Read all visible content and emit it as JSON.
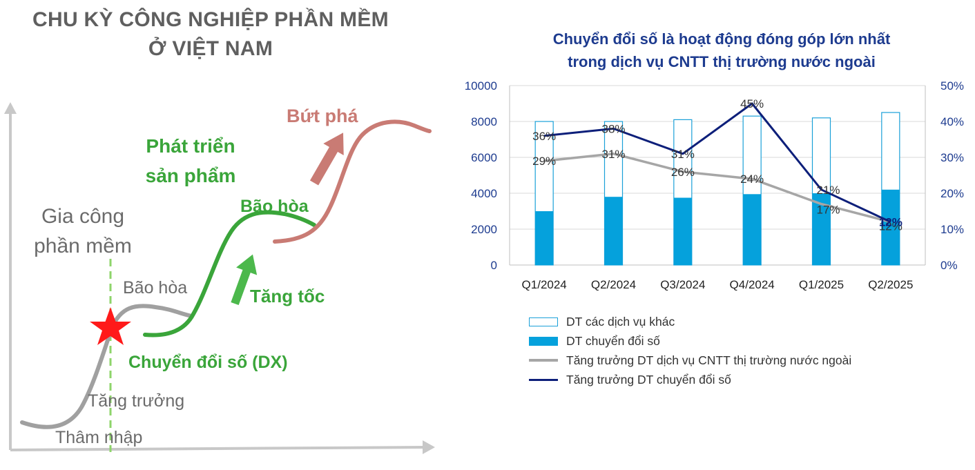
{
  "left_panel": {
    "title_line1": "CHU KỲ CÔNG NGHIỆP PHẦN MỀM",
    "title_line2": "Ở VIỆT NAM",
    "labels": {
      "gia_cong_1": "Gia công",
      "gia_cong_2": "phần mềm",
      "bao_hoa_gray": "Bão hòa",
      "tang_truong": "Tăng trưởng",
      "tham_nhap": "Thâm nhập",
      "phat_trien_1": "Phát triển",
      "phat_trien_2": "sản phẩm",
      "bao_hoa_green": "Bão hòa",
      "tang_toc": "Tăng tốc",
      "chuyen_doi_so": "Chuyển đổi số (DX)",
      "but_pha": "Bứt phá"
    },
    "colors": {
      "gray": "#a0a0a0",
      "green": "#3aa53a",
      "rose": "#c97b74",
      "star": "#ff1a1a",
      "text_gray": "#6b6b6b"
    }
  },
  "chart_data": {
    "type": "bar",
    "title": "Chuyển đổi số là hoạt động đóng góp lớn nhất trong dịch vụ CNTT thị trường nước ngoài",
    "title_line1": "Chuyển đổi số là hoạt động đóng góp lớn nhất",
    "title_line2": "trong dịch vụ CNTT thị trường nước ngoài",
    "categories": [
      "Q1/2024",
      "Q2/2024",
      "Q3/2024",
      "Q4/2024",
      "Q1/2025",
      "Q2/2025"
    ],
    "y_left": {
      "min": 0,
      "max": 10000,
      "ticks": [
        "0",
        "2000",
        "4000",
        "6000",
        "8000",
        "10000"
      ]
    },
    "y_right": {
      "min": 0,
      "max": 50,
      "ticks": [
        "0%",
        "10%",
        "20%",
        "30%",
        "40%",
        "50%"
      ]
    },
    "series": [
      {
        "name": "DT các dịch vụ khác",
        "kind": "bar-total-outline",
        "axis": "left",
        "values": [
          8000,
          8000,
          8100,
          8300,
          8200,
          8500
        ]
      },
      {
        "name": "DT chuyển đổi số",
        "kind": "bar",
        "axis": "left",
        "values": [
          3000,
          3800,
          3750,
          3950,
          4000,
          4200
        ]
      },
      {
        "name": "Tăng trưởng DT dịch vụ CNTT thị trường nước ngoài",
        "kind": "line",
        "axis": "right",
        "values": [
          29,
          31,
          26,
          24,
          17,
          12
        ],
        "labels": [
          "29%",
          "31%",
          "26%",
          "24%",
          "17%",
          "12%"
        ]
      },
      {
        "name": "Tăng trưởng DT chuyển đổi số",
        "kind": "line",
        "axis": "right",
        "values": [
          36,
          38,
          31,
          45,
          21,
          12
        ],
        "labels": [
          "36%",
          "38%",
          "31%",
          "45%",
          "21%",
          "12%"
        ]
      }
    ],
    "grid": true,
    "legend_position": "bottom",
    "colors": {
      "bar_outline": "#1aa0d8",
      "bar_fill": "#05a1dc",
      "line_gray": "#a6a6a6",
      "line_navy": "#0d1f7a",
      "axis_text": "#1d3b8f"
    }
  }
}
